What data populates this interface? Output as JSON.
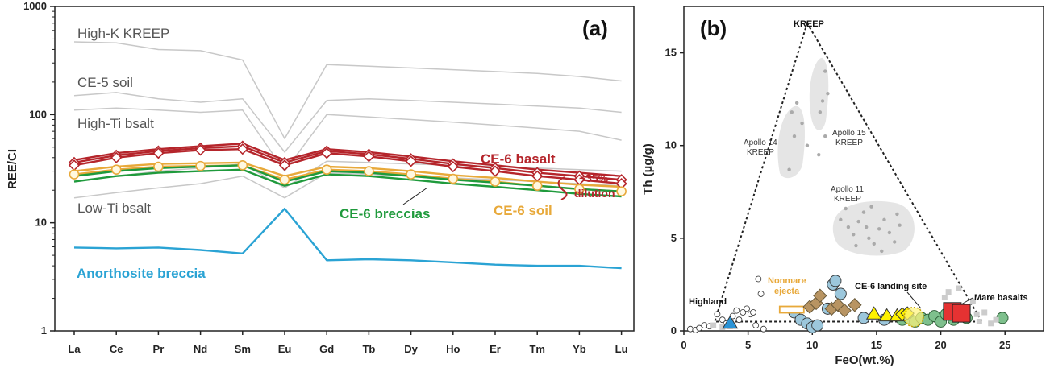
{
  "chart_data": [
    {
      "type": "line",
      "panel_label": "(a)",
      "ylabel": "REE/CI",
      "y_scale": "log",
      "ylim": [
        1,
        1000
      ],
      "y_ticks": [
        "1",
        "10",
        "100",
        "1000"
      ],
      "categories": [
        "La",
        "Ce",
        "Pr",
        "Nd",
        "Sm",
        "Eu",
        "Gd",
        "Tb",
        "Dy",
        "Ho",
        "Er",
        "Tm",
        "Yb",
        "Lu"
      ],
      "reference_labels": [
        "High-K KREEP",
        "CE-5 soil",
        "High-Ti bsalt",
        "Low-Ti bsalt"
      ],
      "series": [
        {
          "name": "High-K KREEP",
          "role": "ref",
          "color": "#c8c8c8",
          "values": [
            470,
            460,
            400,
            390,
            320,
            60,
            290,
            280,
            270,
            260,
            250,
            240,
            225,
            205
          ]
        },
        {
          "name": "CE-5 soil",
          "role": "ref",
          "color": "#c8c8c8",
          "values": [
            150,
            160,
            140,
            130,
            140,
            45,
            135,
            140,
            135,
            130,
            125,
            120,
            115,
            105
          ]
        },
        {
          "name": "High-Ti bsalt",
          "role": "ref",
          "color": "#c8c8c8",
          "values": [
            110,
            115,
            110,
            105,
            110,
            30,
            100,
            95,
            90,
            85,
            80,
            75,
            70,
            58
          ]
        },
        {
          "name": "Low-Ti bsalt",
          "role": "ref",
          "color": "#c8c8c8",
          "values": [
            17,
            19,
            21,
            23,
            27,
            17,
            29,
            28,
            27,
            26,
            25,
            24,
            23,
            22
          ]
        },
        {
          "name": "Low-Ti bsalt 2",
          "role": "ref",
          "color": "#c8c8c8",
          "values": [
            24,
            27,
            30,
            32,
            35,
            21,
            37,
            36,
            35,
            34,
            33,
            32,
            31,
            30
          ]
        },
        {
          "name": "CE-6 basalt",
          "role": "main",
          "color": "#b5252b",
          "marker": "diamond",
          "values": [
            36,
            42,
            46,
            49,
            51,
            36,
            46,
            43,
            39,
            35,
            32,
            29,
            27,
            25
          ]
        },
        {
          "name": "CE-6 basalt 2",
          "role": "main",
          "color": "#b5252b",
          "marker": "diamond",
          "values": [
            34,
            40,
            44,
            47,
            48,
            34,
            44,
            41,
            37,
            33,
            30,
            27,
            25,
            23
          ]
        },
        {
          "name": "CE-6 basalt 3",
          "role": "main",
          "color": "#b5252b",
          "marker": "none",
          "values": [
            38,
            44,
            48,
            51,
            54,
            38,
            48,
            45,
            41,
            37,
            34,
            31,
            29,
            27
          ]
        },
        {
          "name": "CE-6 soil",
          "role": "main",
          "color": "#e8a93a",
          "marker": "circle",
          "values": [
            28,
            31,
            33,
            33.5,
            34,
            25,
            31,
            30,
            28,
            25.5,
            24,
            22,
            20.5,
            19.5
          ]
        },
        {
          "name": "CE-6 soil 2",
          "role": "main",
          "color": "#e8a93a",
          "marker": "none",
          "values": [
            30,
            33,
            35,
            35.5,
            36,
            27,
            33,
            32,
            30,
            27.5,
            26,
            24,
            22.5,
            21.5
          ]
        },
        {
          "name": "CE-6 breccias",
          "role": "main",
          "color": "#1f9a3c",
          "marker": "none",
          "values": [
            24,
            27,
            29,
            30,
            31,
            22,
            28,
            27,
            25,
            23,
            21.5,
            20,
            18.5,
            17.5
          ]
        },
        {
          "name": "CE-6 breccias 2",
          "role": "main",
          "color": "#1f9a3c",
          "marker": "none",
          "values": [
            27,
            30,
            32,
            33,
            34,
            24,
            30,
            29,
            27,
            25,
            23.5,
            22,
            20.5,
            19.5
          ]
        },
        {
          "name": "Anorthosite breccia",
          "role": "main",
          "color": "#2aa3d4",
          "marker": "none",
          "values": [
            5.9,
            5.8,
            5.9,
            5.6,
            5.2,
            13.5,
            4.5,
            4.6,
            4.5,
            4.3,
            4.1,
            4.0,
            4.0,
            3.8
          ]
        }
      ],
      "labels": {
        "ce6_basalt": "CE-6 basalt",
        "dilution_1": "~35%",
        "dilution_2": "dilution",
        "ce6_soil": "CE-6 soil",
        "ce6_breccias": "CE-6 breccias",
        "anorthosite": "Anorthosite breccia"
      },
      "colors": {
        "basalt": "#b5252b",
        "soil": "#e8a93a",
        "breccias": "#1f9a3c",
        "anorthosite": "#2aa3d4",
        "reference": "#c8c8c8"
      }
    },
    {
      "type": "scatter",
      "panel_label": "(b)",
      "xlabel": "FeO(wt.%)",
      "ylabel": "Th (µg/g)",
      "xlim": [
        0,
        28
      ],
      "ylim": [
        0,
        17.5
      ],
      "x_ticks": [
        0,
        5,
        10,
        15,
        20,
        25
      ],
      "y_ticks": [
        0,
        5,
        10,
        15
      ],
      "triangle_vertices": [
        [
          9.6,
          16.6
        ],
        [
          2.4,
          0.5
        ],
        [
          23.2,
          0.5
        ]
      ],
      "labels": {
        "kreep": "KREEP",
        "apollo14": [
          "Apollo 14",
          "KREEP"
        ],
        "apollo15": [
          "Apollo 15",
          "KREEP"
        ],
        "apollo11": [
          "Apollo 11",
          "KREEP"
        ],
        "highland": "Highland",
        "nonmare": [
          "Nonmare",
          "ejecta"
        ],
        "landing": "CE-6 landing site",
        "mare": "Mare basalts"
      },
      "field_points": {
        "apollo14": [
          [
            8.2,
            8.7
          ],
          [
            8.6,
            10.5
          ],
          [
            8.8,
            12.3
          ],
          [
            9.2,
            11.2
          ],
          [
            9.6,
            10.0
          ],
          [
            8.4,
            11.8
          ]
        ],
        "apollo15": [
          [
            10.6,
            11.8
          ],
          [
            10.8,
            12.4
          ],
          [
            11.0,
            14.0
          ],
          [
            11.2,
            12.8
          ],
          [
            11.0,
            10.5
          ],
          [
            10.5,
            9.5
          ]
        ],
        "apollo11": [
          [
            12.2,
            6.0
          ],
          [
            12.8,
            5.6
          ],
          [
            13.2,
            5.2
          ],
          [
            13.6,
            5.9
          ],
          [
            14.0,
            6.4
          ],
          [
            14.4,
            5.0
          ],
          [
            14.8,
            4.7
          ],
          [
            15.2,
            5.5
          ],
          [
            15.6,
            6.0
          ],
          [
            16.0,
            5.3
          ],
          [
            16.4,
            4.8
          ],
          [
            16.8,
            5.7
          ],
          [
            14.6,
            6.7
          ],
          [
            15.4,
            4.3
          ],
          [
            13.4,
            4.6
          ],
          [
            16.6,
            6.3
          ],
          [
            12.6,
            6.6
          ],
          [
            14.2,
            5.6
          ]
        ]
      },
      "series": [
        {
          "name": "highland",
          "marker": "small-circle",
          "color": "#ffffff",
          "stroke": "#333333",
          "points": [
            [
              0.5,
              0.1
            ],
            [
              0.9,
              0.05
            ],
            [
              1.2,
              0.15
            ],
            [
              1.6,
              0.3
            ],
            [
              2.0,
              0.25
            ],
            [
              2.6,
              0.9
            ],
            [
              3.0,
              0.6
            ],
            [
              3.3,
              0.4
            ],
            [
              3.8,
              0.8
            ],
            [
              4.1,
              1.1
            ],
            [
              4.3,
              0.6
            ],
            [
              4.6,
              1.0
            ],
            [
              4.9,
              1.2
            ],
            [
              5.2,
              0.9
            ],
            [
              5.4,
              1.0
            ],
            [
              5.6,
              0.3
            ],
            [
              5.8,
              2.8
            ],
            [
              6.0,
              2.0
            ],
            [
              6.2,
              0.1
            ]
          ]
        },
        {
          "name": "highland-square",
          "marker": "square",
          "color": "#cccccc",
          "points": [
            [
              2.3,
              0.3
            ],
            [
              3.0,
              0.2
            ],
            [
              3.6,
              0.25
            ]
          ]
        },
        {
          "name": "ce6-blue-circles",
          "marker": "circle",
          "color": "#9cc7dc",
          "stroke": "#333333",
          "points": [
            [
              8.6,
              1.0
            ],
            [
              9.1,
              0.6
            ],
            [
              9.6,
              0.4
            ],
            [
              10.0,
              0.2
            ],
            [
              10.4,
              0.3
            ],
            [
              11.2,
              1.2
            ],
            [
              11.6,
              2.5
            ],
            [
              11.8,
              2.7
            ],
            [
              12.2,
              2.0
            ],
            [
              14.0,
              0.7
            ],
            [
              15.6,
              0.6
            ]
          ]
        },
        {
          "name": "nonmare-ejecta",
          "marker": "rect",
          "color": "#ffffff",
          "stroke": "#e8a93a",
          "points": [
            [
              8.4,
              1.15
            ]
          ]
        },
        {
          "name": "nonmare-diamonds",
          "marker": "diamond",
          "color": "#b89462",
          "stroke": "#6a5a3a",
          "points": [
            [
              9.8,
              1.3
            ],
            [
              10.3,
              1.5
            ],
            [
              10.6,
              1.9
            ],
            [
              11.5,
              1.2
            ],
            [
              12.0,
              1.4
            ],
            [
              12.5,
              1.1
            ],
            [
              13.3,
              1.4
            ]
          ]
        },
        {
          "name": "ce6-landing-green",
          "marker": "circle",
          "color": "#7ec08d",
          "stroke": "#2a5a33",
          "points": [
            [
              17.0,
              0.6
            ],
            [
              17.5,
              0.7
            ],
            [
              18.0,
              0.5
            ],
            [
              18.5,
              0.7
            ],
            [
              19.0,
              0.6
            ],
            [
              19.5,
              0.8
            ],
            [
              20.0,
              0.5
            ],
            [
              20.4,
              0.9
            ],
            [
              21.0,
              0.6
            ],
            [
              21.4,
              0.9
            ],
            [
              22.0,
              0.7
            ],
            [
              24.8,
              0.7
            ]
          ]
        },
        {
          "name": "ce6-landing-yellow-tri",
          "marker": "triangle",
          "color": "#fff200",
          "stroke": "#333333",
          "points": [
            [
              14.8,
              0.9
            ],
            [
              15.8,
              0.8
            ],
            [
              16.6,
              0.8
            ]
          ]
        },
        {
          "name": "ce6-landing-yellow-dia",
          "marker": "diamond",
          "color": "#fff200",
          "stroke": "#333333",
          "points": [
            [
              17.0,
              0.9
            ],
            [
              17.4,
              0.95
            ]
          ]
        },
        {
          "name": "ce6-landing-dotted",
          "marker": "dashed-circle",
          "color": "#fff37a",
          "stroke": "#c4a300",
          "points": [
            [
              17.9,
              0.75
            ]
          ]
        },
        {
          "name": "mare-grey",
          "marker": "square",
          "color": "#cccccc",
          "points": [
            [
              20.3,
              1.8
            ],
            [
              20.6,
              2.1
            ],
            [
              21.4,
              2.3
            ],
            [
              22.1,
              1.3
            ],
            [
              22.5,
              1.6
            ],
            [
              23.0,
              0.5
            ],
            [
              23.4,
              1.0
            ],
            [
              23.9,
              0.4
            ],
            [
              24.3,
              0.6
            ],
            [
              22.8,
              0.9
            ]
          ]
        },
        {
          "name": "mare-red",
          "marker": "big-square",
          "color": "#e53232",
          "stroke": "#222222",
          "points": [
            [
              20.9,
              1.05
            ],
            [
              21.6,
              0.95
            ]
          ]
        },
        {
          "name": "anorthosite-blue",
          "marker": "triangle",
          "color": "#2a93d6",
          "stroke": "#333333",
          "points": [
            [
              3.6,
              0.4
            ]
          ]
        }
      ]
    }
  ]
}
